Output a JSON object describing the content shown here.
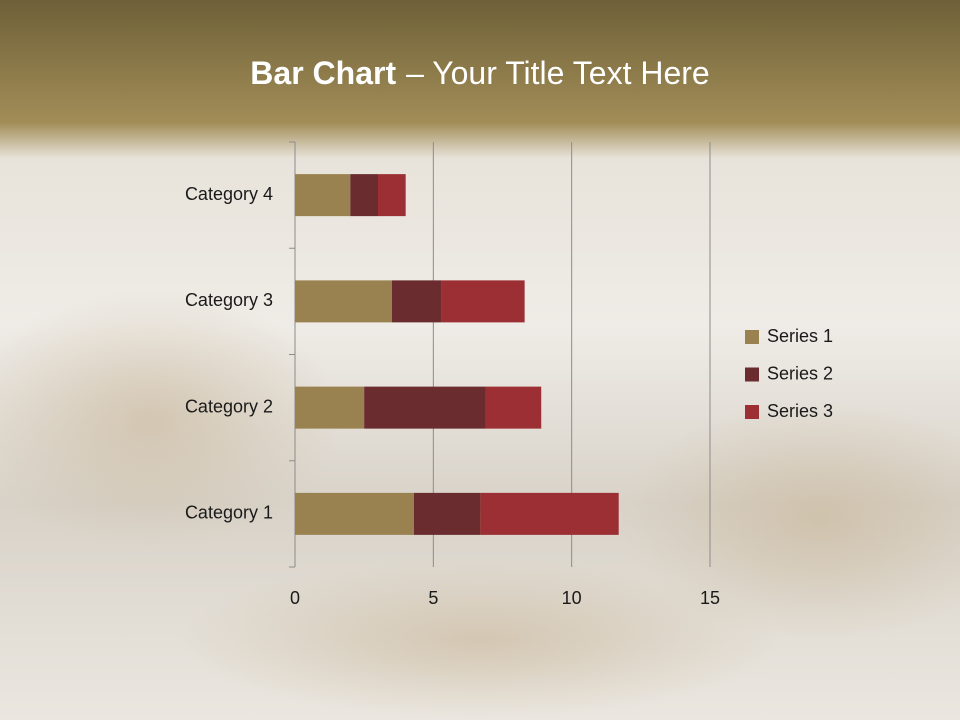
{
  "chart_data": {
    "type": "stacked-barh",
    "title": [
      "Bar Chart",
      "– Your Title Text Here"
    ],
    "categories": [
      "Category 1",
      "Category 2",
      "Category 3",
      "Category 4"
    ],
    "series": [
      {
        "name": "Series 1",
        "color": "#998250",
        "values": [
          4.3,
          2.5,
          3.5,
          2
        ]
      },
      {
        "name": "Series 2",
        "color": "#6a2c2e",
        "values": [
          2.4,
          4.4,
          1.8,
          1
        ]
      },
      {
        "name": "Series 3",
        "color": "#9b2f33",
        "values": [
          5,
          2,
          3,
          1
        ]
      }
    ],
    "xlim": [
      0,
      15
    ],
    "xticks": [
      0,
      5,
      10,
      15
    ],
    "grid": true,
    "legend": "right"
  }
}
